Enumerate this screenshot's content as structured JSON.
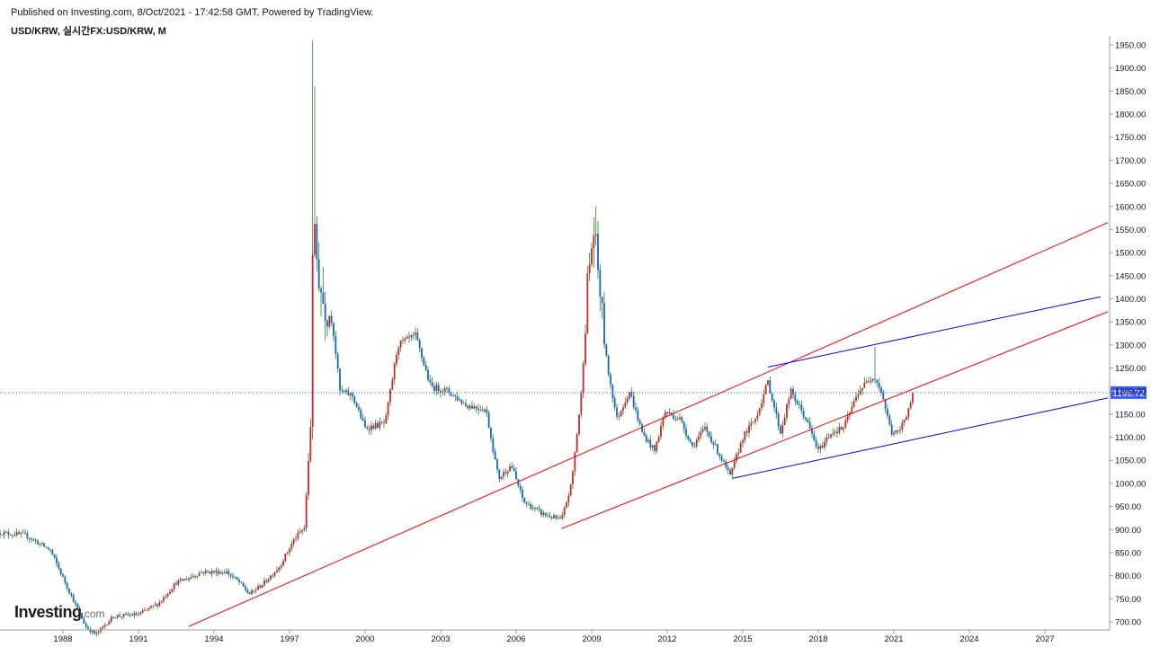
{
  "header": {
    "published": "Published on Investing.com, 8/Oct/2021 - 17:42:58 GMT, Powered by TradingView.",
    "title": "USD/KRW, 실시간FX:USD/KRW, M"
  },
  "branding": {
    "logo_main": "Investing",
    "logo_suffix": ".com"
  },
  "colors": {
    "up": "#c62828",
    "down": "#1565c0",
    "wick": "#2e7d32",
    "trend_red": "#ff0000",
    "trend_blue": "#0000ff",
    "price_line": "#3d5afe",
    "price_badge": "#3d5afe",
    "axis": "#9e9e9e"
  },
  "chart_data": {
    "type": "candlestick",
    "title": "USD/KRW, 실시간FX:USD/KRW, M",
    "interval": "monthly",
    "xlim": [
      1985.5,
      2029.5
    ],
    "ylim": [
      690,
      1960
    ],
    "x_ticks": [
      1988,
      1991,
      1994,
      1997,
      2000,
      2003,
      2006,
      2009,
      2012,
      2015,
      2018,
      2021,
      2024,
      2027
    ],
    "y_ticks": [
      700,
      750,
      800,
      850,
      900,
      950,
      1000,
      1050,
      1100,
      1150,
      1200,
      1250,
      1300,
      1350,
      1400,
      1450,
      1500,
      1550,
      1600,
      1650,
      1700,
      1750,
      1800,
      1850,
      1900,
      1950
    ],
    "y_tick_format": "fixed2",
    "last_price": 1196.72,
    "last_price_label": "1196.72",
    "grid": false,
    "price_anchors": [
      [
        1985.5,
        893
      ],
      [
        1986.5,
        888
      ],
      [
        1987.5,
        855
      ],
      [
        1988.3,
        760
      ],
      [
        1988.9,
        690
      ],
      [
        1989.3,
        672
      ],
      [
        1990.0,
        712
      ],
      [
        1991.0,
        716
      ],
      [
        1991.8,
        740
      ],
      [
        1992.5,
        785
      ],
      [
        1993.0,
        795
      ],
      [
        1993.5,
        808
      ],
      [
        1994.5,
        808
      ],
      [
        1995.0,
        786
      ],
      [
        1995.4,
        760
      ],
      [
        1996.0,
        785
      ],
      [
        1996.6,
        820
      ],
      [
        1997.2,
        880
      ],
      [
        1997.6,
        905
      ],
      [
        1997.85,
        1150
      ],
      [
        1997.95,
        1700
      ],
      [
        1998.0,
        1520
      ],
      [
        1998.3,
        1400
      ],
      [
        1998.7,
        1350
      ],
      [
        1999.0,
        1200
      ],
      [
        1999.5,
        1190
      ],
      [
        2000.0,
        1120
      ],
      [
        2000.8,
        1130
      ],
      [
        2001.3,
        1300
      ],
      [
        2002.0,
        1320
      ],
      [
        2002.6,
        1210
      ],
      [
        2003.3,
        1200
      ],
      [
        2004.0,
        1170
      ],
      [
        2004.8,
        1160
      ],
      [
        2005.3,
        1010
      ],
      [
        2005.8,
        1040
      ],
      [
        2006.3,
        960
      ],
      [
        2007.0,
        935
      ],
      [
        2007.8,
        920
      ],
      [
        2008.2,
        1000
      ],
      [
        2008.6,
        1200
      ],
      [
        2008.85,
        1450
      ],
      [
        2009.1,
        1550
      ],
      [
        2009.6,
        1260
      ],
      [
        2010.0,
        1140
      ],
      [
        2010.5,
        1200
      ],
      [
        2011.0,
        1110
      ],
      [
        2011.5,
        1070
      ],
      [
        2011.9,
        1155
      ],
      [
        2012.5,
        1140
      ],
      [
        2013.0,
        1080
      ],
      [
        2013.5,
        1120
      ],
      [
        2014.0,
        1070
      ],
      [
        2014.5,
        1015
      ],
      [
        2015.0,
        1100
      ],
      [
        2015.5,
        1140
      ],
      [
        2016.0,
        1220
      ],
      [
        2016.5,
        1110
      ],
      [
        2016.9,
        1200
      ],
      [
        2017.5,
        1140
      ],
      [
        2018.0,
        1070
      ],
      [
        2018.5,
        1110
      ],
      [
        2019.0,
        1120
      ],
      [
        2019.6,
        1200
      ],
      [
        2020.2,
        1235
      ],
      [
        2020.5,
        1200
      ],
      [
        2020.9,
        1110
      ],
      [
        2021.2,
        1110
      ],
      [
        2021.5,
        1150
      ],
      [
        2021.8,
        1196.72
      ]
    ],
    "annotations": {
      "red_lines": [
        {
          "from": [
            1993.0,
            690
          ],
          "to": [
            2029.5,
            1565
          ]
        },
        {
          "from": [
            2007.8,
            902
          ],
          "to": [
            2029.5,
            1372
          ]
        }
      ],
      "blue_lines": [
        {
          "from": [
            2016.0,
            1252
          ],
          "to": [
            2029.2,
            1404
          ]
        },
        {
          "from": [
            2014.6,
            1011
          ],
          "to": [
            2029.5,
            1185
          ]
        }
      ]
    }
  }
}
